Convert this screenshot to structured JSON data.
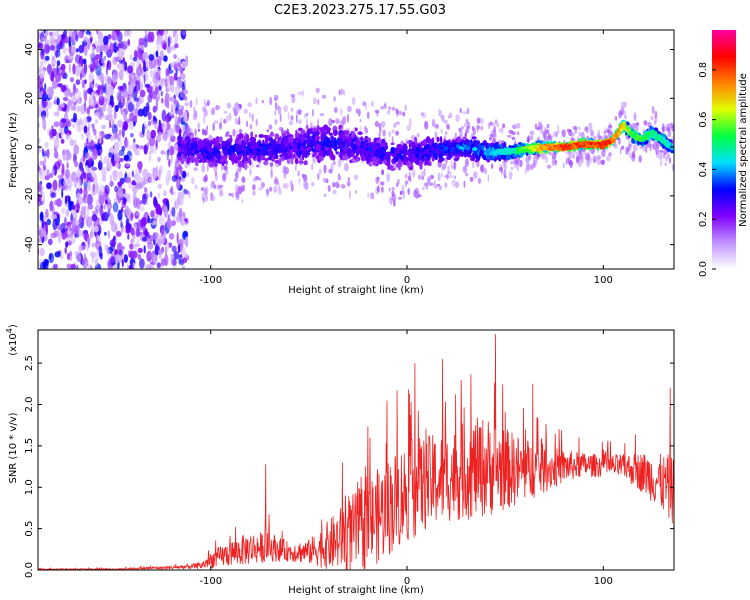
{
  "title": "C2E3.2023.275.17.55.G03",
  "chart_data": [
    {
      "type": "heatmap",
      "xlabel": "Height of straight line (km)",
      "ylabel": "Frequency (Hz)",
      "xlim": [
        -188,
        136
      ],
      "ylim": [
        -50,
        48
      ],
      "xticks": [
        {
          "value": -100,
          "label": "-100"
        },
        {
          "value": 0,
          "label": "0"
        },
        {
          "value": 100,
          "label": "100"
        }
      ],
      "yticks": [
        {
          "value": -40,
          "label": "-40"
        },
        {
          "value": -20,
          "label": "-20"
        },
        {
          "value": 0,
          "label": "0"
        },
        {
          "value": 20,
          "label": "20"
        },
        {
          "value": 40,
          "label": "40"
        }
      ],
      "colorbar": {
        "label": "Normalized spectral amplitude",
        "range": [
          0,
          0.96
        ],
        "ticks": [
          {
            "value": 0.0,
            "label": "0.0"
          },
          {
            "value": 0.2,
            "label": "0.2"
          },
          {
            "value": 0.4,
            "label": "0.4"
          },
          {
            "value": 0.6,
            "label": "0.6"
          },
          {
            "value": 0.8,
            "label": "0.8"
          }
        ],
        "colors": [
          "#ffffff",
          "#c090ff",
          "#8000ff",
          "#0000ff",
          "#00e0ff",
          "#00ff40",
          "#e0ff00",
          "#ff8000",
          "#ff0000",
          "#ff00a0"
        ]
      },
      "ridge": {
        "x": [
          -188,
          -120,
          -115,
          -100,
          -80,
          -60,
          -40,
          -30,
          -20,
          -10,
          0,
          10,
          20,
          30,
          40,
          50,
          60,
          70,
          80,
          90,
          100,
          105,
          110,
          115,
          120,
          125,
          130,
          136
        ],
        "center": [
          0,
          0,
          0,
          -2,
          -1,
          0,
          2,
          1,
          -1,
          -3,
          -3,
          -2,
          -1,
          0,
          -2,
          -2,
          -1,
          0,
          0,
          1,
          1,
          3,
          9,
          5,
          3,
          6,
          3,
          -1
        ],
        "width": [
          40,
          40,
          9,
          9,
          9,
          9,
          10,
          9,
          8,
          9,
          8,
          7,
          6,
          6,
          5,
          4,
          3,
          2.5,
          2,
          2,
          2,
          2,
          3,
          3,
          3,
          3,
          3,
          3
        ],
        "amplitude": [
          0.25,
          0.25,
          0.3,
          0.3,
          0.3,
          0.3,
          0.32,
          0.32,
          0.32,
          0.3,
          0.3,
          0.33,
          0.36,
          0.38,
          0.42,
          0.48,
          0.6,
          0.78,
          0.85,
          0.85,
          0.88,
          0.82,
          0.7,
          0.6,
          0.55,
          0.55,
          0.5,
          0.45
        ]
      },
      "noise_region": [
        -188,
        -112
      ]
    },
    {
      "type": "line",
      "xlabel": "Height of straight line (km)",
      "ylabel": "SNR (10 * v/v)",
      "scale_label": "(x10",
      "scale_exponent": "4",
      "scale_close": ")",
      "color": "#ee2222",
      "xlim": [
        -188,
        136
      ],
      "ylim": [
        0,
        2.9
      ],
      "xticks": [
        {
          "value": -100,
          "label": "-100"
        },
        {
          "value": 0,
          "label": "0"
        },
        {
          "value": 100,
          "label": "100"
        }
      ],
      "yticks": [
        {
          "value": 0.0,
          "label": "0.0"
        },
        {
          "value": 0.5,
          "label": "0.5"
        },
        {
          "value": 1.0,
          "label": "1.0"
        },
        {
          "value": 1.5,
          "label": "1.5"
        },
        {
          "value": 2.0,
          "label": "2.0"
        },
        {
          "value": 2.5,
          "label": "2.5"
        }
      ],
      "envelope": {
        "x": [
          -188,
          -150,
          -120,
          -105,
          -100,
          -90,
          -80,
          -70,
          -60,
          -50,
          -40,
          -30,
          -20,
          -10,
          0,
          10,
          20,
          30,
          40,
          50,
          60,
          70,
          80,
          90,
          100,
          110,
          120,
          130,
          136
        ],
        "mean": [
          0.01,
          0.01,
          0.03,
          0.05,
          0.12,
          0.2,
          0.26,
          0.28,
          0.22,
          0.22,
          0.3,
          0.42,
          0.55,
          0.75,
          0.95,
          1.05,
          1.12,
          1.2,
          1.25,
          1.22,
          1.2,
          1.22,
          1.25,
          1.27,
          1.26,
          1.25,
          1.18,
          1.05,
          0.95
        ],
        "spread": [
          0.005,
          0.008,
          0.02,
          0.04,
          0.1,
          0.16,
          0.2,
          0.18,
          0.12,
          0.15,
          0.3,
          0.45,
          0.55,
          0.6,
          0.62,
          0.58,
          0.55,
          0.6,
          0.62,
          0.5,
          0.4,
          0.3,
          0.2,
          0.15,
          0.14,
          0.15,
          0.25,
          0.35,
          0.45
        ]
      },
      "peaks": [
        {
          "x": -72,
          "y": 1.28
        },
        {
          "x": -33,
          "y": 1.3
        },
        {
          "x": 4,
          "y": 2.5
        },
        {
          "x": 18,
          "y": 2.55
        },
        {
          "x": 45,
          "y": 2.85
        },
        {
          "x": 64,
          "y": 2.25
        },
        {
          "x": 134,
          "y": 2.2
        }
      ]
    }
  ]
}
